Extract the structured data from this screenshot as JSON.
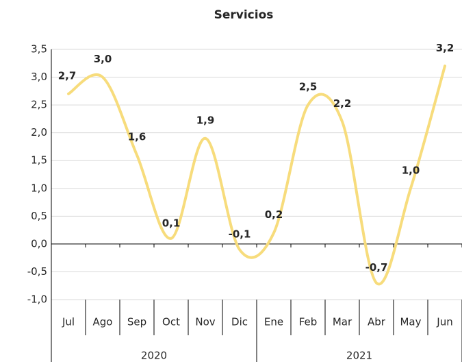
{
  "chart_data": {
    "type": "line",
    "title": "Servicios",
    "categories": [
      "Jul",
      "Ago",
      "Sep",
      "Oct",
      "Nov",
      "Dic",
      "Ene",
      "Feb",
      "Mar",
      "Abr",
      "May",
      "Jun"
    ],
    "category_groups": [
      "2020",
      "2021"
    ],
    "series": [
      {
        "name": "Servicios",
        "color": "#f7dc7c",
        "values": [
          2.7,
          3.0,
          1.6,
          0.1,
          1.9,
          -0.1,
          0.2,
          2.5,
          2.2,
          -0.7,
          1.0,
          3.2
        ],
        "value_labels": [
          "2,7",
          "3,0",
          "1,6",
          "0,1",
          "1,9",
          "-0,1",
          "0,2",
          "2,5",
          "2,2",
          "-0,7",
          "1,0",
          "3,2"
        ]
      }
    ],
    "ylim": [
      -1.0,
      3.5
    ],
    "yticks": [
      {
        "value": -1.0,
        "label": "-1,0"
      },
      {
        "value": -0.5,
        "label": "-0,5"
      },
      {
        "value": 0,
        "label": "0,0"
      },
      {
        "value": 0.5,
        "label": "0,5"
      },
      {
        "value": 1.0,
        "label": "1,0"
      },
      {
        "value": 1.5,
        "label": "1,5"
      },
      {
        "value": 2.0,
        "label": "2,0"
      },
      {
        "value": 2.5,
        "label": "2,5"
      },
      {
        "value": 3.0,
        "label": "3,0"
      },
      {
        "value": 3.5,
        "label": "3,5"
      }
    ],
    "grid": true
  }
}
